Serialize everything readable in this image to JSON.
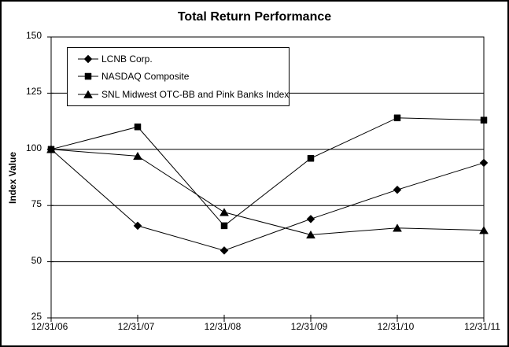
{
  "chart_data": {
    "type": "line",
    "title": "Total Return Performance",
    "xlabel": "",
    "ylabel": "Index Value",
    "categories": [
      "12/31/06",
      "12/31/07",
      "12/31/08",
      "12/31/09",
      "12/31/10",
      "12/31/11"
    ],
    "yticks": [
      150,
      125,
      100,
      75,
      50,
      25
    ],
    "ylim": [
      25,
      150
    ],
    "grid": true,
    "legend_position": "top-left",
    "background_color": "#ffffff",
    "line_color": "#000000",
    "series": [
      {
        "name": "LCNB Corp.",
        "marker": "diamond",
        "color": "#000000",
        "values": [
          100,
          66,
          55,
          69,
          82,
          94
        ]
      },
      {
        "name": "NASDAQ Composite",
        "marker": "square",
        "color": "#000000",
        "values": [
          100,
          110,
          66,
          96,
          114,
          113
        ]
      },
      {
        "name": "SNL Midwest OTC-BB and Pink Banks Index",
        "marker": "triangle",
        "color": "#000000",
        "values": [
          100,
          97,
          72,
          62,
          65,
          64
        ]
      }
    ]
  }
}
